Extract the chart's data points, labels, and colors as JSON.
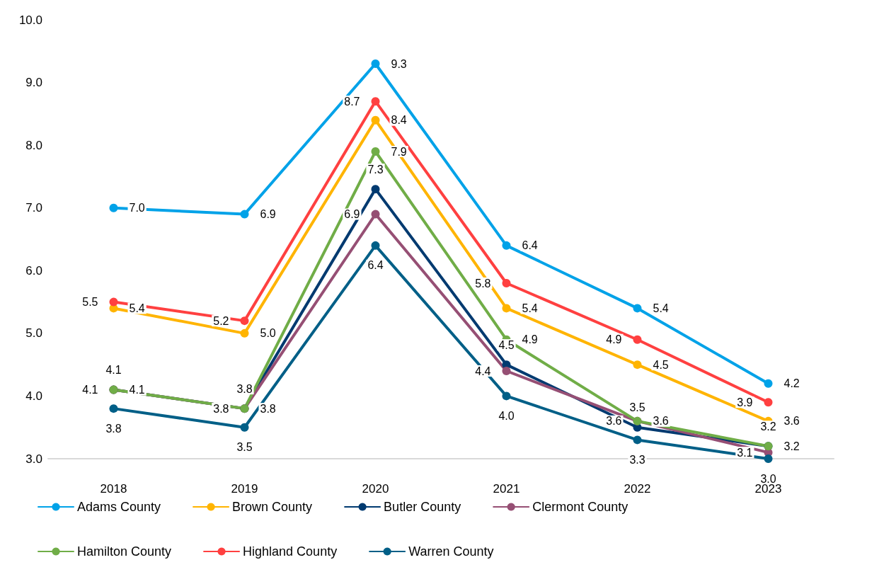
{
  "chart_data": {
    "type": "line",
    "categories": [
      "2018",
      "2019",
      "2020",
      "2021",
      "2022",
      "2023"
    ],
    "series": [
      {
        "name": "Adams County",
        "color": "#00a2e8",
        "values": [
          7.0,
          6.9,
          9.3,
          6.4,
          5.4,
          4.2
        ],
        "value_labels": [
          "7.0",
          "6.9",
          "9.3",
          "6.4",
          "5.4",
          "4.2"
        ]
      },
      {
        "name": "Brown County",
        "color": "#ffb400",
        "values": [
          5.4,
          5.0,
          8.4,
          5.4,
          4.5,
          3.6
        ],
        "value_labels": [
          "5.4",
          "5.0",
          "8.4",
          "5.4",
          "4.5",
          "3.6"
        ]
      },
      {
        "name": "Butler County",
        "color": "#003a70",
        "values": [
          4.1,
          3.8,
          7.3,
          4.5,
          3.5,
          3.2
        ],
        "value_labels": [
          "4.1",
          "3.8",
          "7.3",
          "4.5",
          "3.5",
          "3.2"
        ]
      },
      {
        "name": "Clermont County",
        "color": "#964f74",
        "values": [
          4.1,
          3.8,
          6.9,
          4.4,
          3.6,
          3.1
        ],
        "value_labels": [
          "4.1",
          "3.8",
          "6.9",
          "4.4",
          "3.6",
          "3.1"
        ]
      },
      {
        "name": "Hamilton County",
        "color": "#70ad47",
        "values": [
          4.1,
          3.8,
          7.9,
          4.9,
          3.6,
          3.2
        ],
        "value_labels": [
          "4.1",
          "3.8",
          "7.9",
          "4.9",
          "3.6",
          "3.2"
        ]
      },
      {
        "name": "Highland County",
        "color": "#ff4040",
        "values": [
          5.5,
          5.2,
          8.7,
          5.8,
          4.9,
          3.9
        ],
        "value_labels": [
          "5.5",
          "5.2",
          "8.7",
          "5.8",
          "4.9",
          "3.9"
        ]
      },
      {
        "name": "Warren County",
        "color": "#005f87",
        "values": [
          3.8,
          3.5,
          6.4,
          4.0,
          3.3,
          3.0
        ],
        "value_labels": [
          "3.8",
          "3.5",
          "6.4",
          "4.0",
          "3.3",
          "3.0"
        ]
      }
    ],
    "ylim": [
      3.0,
      10.0
    ],
    "yticks": [
      {
        "value": 3,
        "label": "3.0"
      },
      {
        "value": 4,
        "label": "4.0"
      },
      {
        "value": 5,
        "label": "5.0"
      },
      {
        "value": 6,
        "label": "6.0"
      },
      {
        "value": 7,
        "label": "7.0"
      },
      {
        "value": 8,
        "label": "8.0"
      },
      {
        "value": 9,
        "label": "9.0"
      },
      {
        "value": 10,
        "label": "10.0"
      }
    ],
    "grid": false,
    "marker": "circle",
    "line_style": "solid",
    "legend": "bottom"
  }
}
